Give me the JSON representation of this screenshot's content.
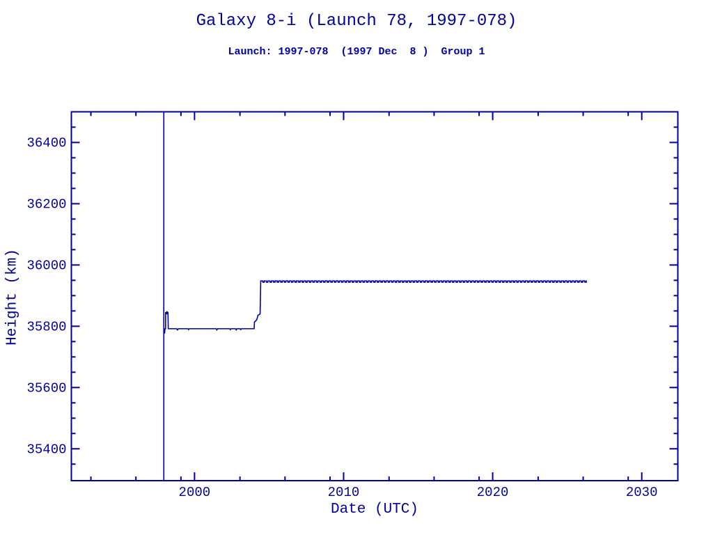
{
  "page": {
    "background_color": "#FFFFFF",
    "ink_color": "#0000A0"
  },
  "header": {
    "title": "Galaxy 8-i (Launch 78, 1997-078)",
    "subtitle": "Launch: 1997-078  (1997 Dec  8 )  Group 1"
  },
  "chart_data": {
    "type": "line",
    "title": "Galaxy 8-i (Launch 78, 1997-078)",
    "subtitle": "Launch: 1997-078  (1997 Dec  8 )  Group 1",
    "xlabel": "Date (UTC)",
    "ylabel": "Height (km)",
    "xlim": [
      1991.74,
      2032.42
    ],
    "ylim": [
      35296,
      36500
    ],
    "grid": false,
    "line_color": "#0000A0",
    "x_major_ticks": [
      2000,
      2010,
      2020,
      2030
    ],
    "x_minor_ticks": [
      1993.05,
      1996.07,
      1999.09,
      2003.05,
      2006.07,
      2009.09,
      2013.05,
      2016.07,
      2019.09,
      2023.05,
      2026.07,
      2029.09
    ],
    "y_major_ticks": [
      35400,
      35600,
      35800,
      36000,
      36200,
      36400
    ],
    "y_minor_ticks": [
      35350,
      35450,
      35500,
      35550,
      35650,
      35700,
      35750,
      35850,
      35900,
      35950,
      36050,
      36100,
      36150,
      36250,
      36300,
      36350,
      36450
    ],
    "launch_epoch_line_x": 1997.94,
    "series": [
      {
        "name": "height_km",
        "points": [
          [
            1997.97,
            35790
          ],
          [
            1997.99,
            35776
          ],
          [
            1998.02,
            35792
          ],
          [
            1998.06,
            35792
          ],
          [
            1998.06,
            35846
          ],
          [
            1998.09,
            35842
          ],
          [
            1998.12,
            35846
          ],
          [
            1998.15,
            35842
          ],
          [
            1998.19,
            35846
          ],
          [
            1998.22,
            35844
          ],
          [
            1998.24,
            35792
          ],
          [
            1998.8,
            35792
          ],
          [
            1998.86,
            35788
          ],
          [
            1998.92,
            35792
          ],
          [
            1999.55,
            35792
          ],
          [
            1999.6,
            35789
          ],
          [
            1999.65,
            35792
          ],
          [
            2001.45,
            35792
          ],
          [
            2001.5,
            35788
          ],
          [
            2001.55,
            35792
          ],
          [
            2002.35,
            35792
          ],
          [
            2002.4,
            35789
          ],
          [
            2002.45,
            35792
          ],
          [
            2002.75,
            35792
          ],
          [
            2002.8,
            35788
          ],
          [
            2002.85,
            35792
          ],
          [
            2003.05,
            35792
          ],
          [
            2003.1,
            35789
          ],
          [
            2003.15,
            35792
          ],
          [
            2004.0,
            35792
          ],
          [
            2004.02,
            35814
          ],
          [
            2004.1,
            35817
          ],
          [
            2004.18,
            35822
          ],
          [
            2004.26,
            35836
          ],
          [
            2004.4,
            35840
          ],
          [
            2004.44,
            35944
          ]
        ],
        "ripple": {
          "start": 2004.44,
          "end": 2026.3,
          "low": 35944,
          "high": 35948,
          "period": 0.24,
          "high_fraction": 0.6
        }
      }
    ]
  }
}
